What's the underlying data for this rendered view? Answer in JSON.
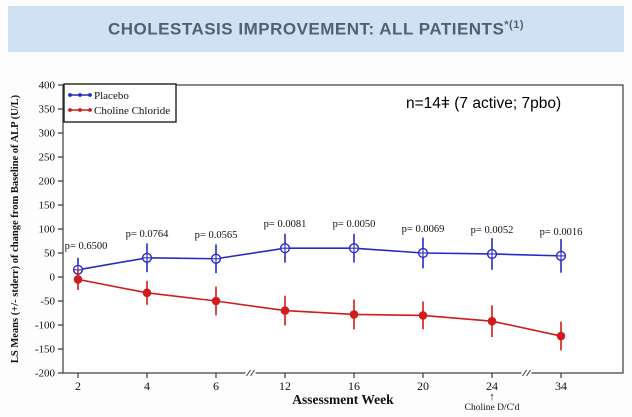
{
  "banner": {
    "title": "CHOLESTASIS IMPROVEMENT: ALL PATIENTS",
    "superscript": "*(1)",
    "bg_color": "#cfe2f4",
    "text_color": "#51616f"
  },
  "chart_data": {
    "type": "line",
    "title": "",
    "x_categories": [
      "2",
      "4",
      "6",
      "12",
      "16",
      "20",
      "24",
      "34"
    ],
    "xlabel": "Assessment Week",
    "ylabel": "LS Means (+/- stderr) of change from Baseline of ALP (U/L)",
    "ylim": [
      -200,
      400
    ],
    "ytick_step": 50,
    "grid": false,
    "legend_position": "top-left",
    "axis_break_after_indices": [
      2,
      6
    ],
    "series": [
      {
        "name": "Placebo",
        "color": "#2a2ac0",
        "marker": "open-circle-plus",
        "values": [
          15,
          40,
          38,
          60,
          60,
          50,
          48,
          44
        ],
        "stderr": [
          25,
          30,
          30,
          30,
          30,
          32,
          33,
          35
        ]
      },
      {
        "name": "Choline Chloride",
        "color": "#cf1d1d",
        "marker": "filled-circle",
        "values": [
          -5,
          -33,
          -50,
          -70,
          -78,
          -80,
          -92,
          -123
        ],
        "stderr": [
          22,
          25,
          30,
          31,
          31,
          29,
          33,
          30
        ]
      }
    ],
    "p_values": [
      "p= 0.6500",
      "p= 0.0764",
      "p= 0.0565",
      "p= 0.0081",
      "p= 0.0050",
      "p= 0.0069",
      "p= 0.0052",
      "p= 0.0016"
    ],
    "annotations": {
      "sample_size": "n=14ǂ (7 active; 7pbo)",
      "event": {
        "text": "Choline D/C'd",
        "arrow": "↑",
        "x_index": 6
      }
    },
    "axis_color": "#3a3a3a",
    "text_color": "#111111"
  }
}
